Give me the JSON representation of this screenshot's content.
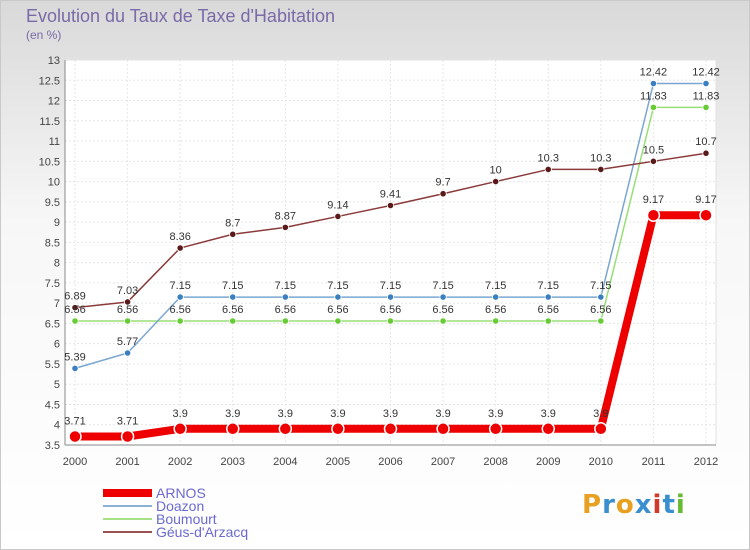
{
  "chart_data": {
    "type": "line",
    "title": "Evolution du Taux de Taxe d'Habitation",
    "subtitle": "(en %)",
    "categories": [
      "2000",
      "2001",
      "2002",
      "2003",
      "2004",
      "2005",
      "2006",
      "2007",
      "2008",
      "2009",
      "2010",
      "2011",
      "2012"
    ],
    "ylim": [
      3.5,
      13
    ],
    "yticks": [
      "3.5",
      "4",
      "4.5",
      "5",
      "5.5",
      "6",
      "6.5",
      "7",
      "7.5",
      "8",
      "8.5",
      "9",
      "9.5",
      "10",
      "10.5",
      "11",
      "11.5",
      "12",
      "12.5",
      "13"
    ],
    "grid": true,
    "legend_position": "bottom-left",
    "series": [
      {
        "name": "ARNOS",
        "color": "#ee0000",
        "marker": "#ee0000",
        "emphasis": true,
        "values": [
          3.71,
          3.71,
          3.9,
          3.9,
          3.9,
          3.9,
          3.9,
          3.9,
          3.9,
          3.9,
          3.9,
          9.17,
          9.17
        ],
        "labels": [
          "3.71",
          "3.71",
          "3.9",
          "3.9",
          "3.9",
          "3.9",
          "3.9",
          "3.9",
          "3.9",
          "3.9",
          "3.9",
          "9.17",
          "9.17"
        ]
      },
      {
        "name": "Doazon",
        "color": "#7aa6d0",
        "marker": "#3a7fc0",
        "values": [
          5.39,
          5.77,
          7.15,
          7.15,
          7.15,
          7.15,
          7.15,
          7.15,
          7.15,
          7.15,
          7.15,
          12.42,
          12.42
        ],
        "labels": [
          "5.39",
          "5.77",
          "7.15",
          "7.15",
          "7.15",
          "7.15",
          "7.15",
          "7.15",
          "7.15",
          "7.15",
          "7.15",
          "12.42",
          "12.42"
        ]
      },
      {
        "name": "Boumourt",
        "color": "#99dd77",
        "marker": "#66cc33",
        "values": [
          6.56,
          6.56,
          6.56,
          6.56,
          6.56,
          6.56,
          6.56,
          6.56,
          6.56,
          6.56,
          6.56,
          11.83,
          11.83
        ],
        "labels": [
          "6.56",
          "6.56",
          "6.56",
          "6.56",
          "6.56",
          "6.56",
          "6.56",
          "6.56",
          "6.56",
          "6.56",
          "6.56",
          "11.83",
          "11.83"
        ]
      },
      {
        "name": "Géus-d'Arzacq",
        "color": "#8a3a3a",
        "marker": "#5a1a1a",
        "values": [
          6.89,
          7.03,
          8.36,
          8.7,
          8.87,
          9.14,
          9.41,
          9.7,
          10,
          10.3,
          10.3,
          10.5,
          10.7
        ],
        "labels": [
          "6.89",
          "7.03",
          "8.36",
          "8.7",
          "8.87",
          "9.14",
          "9.41",
          "9.7",
          "10",
          "10.3",
          "10.3",
          "10.5",
          "10.7"
        ]
      }
    ]
  },
  "logo": {
    "text": "Proxiti",
    "letters": [
      "P",
      "r",
      "o",
      "x",
      "i",
      "t",
      "i"
    ],
    "colors": [
      "#e8a020",
      "#3a8fd0",
      "#e8a020",
      "#3a8fd0",
      "#d03a2a",
      "#3a8fd0",
      "#66bb33"
    ]
  }
}
